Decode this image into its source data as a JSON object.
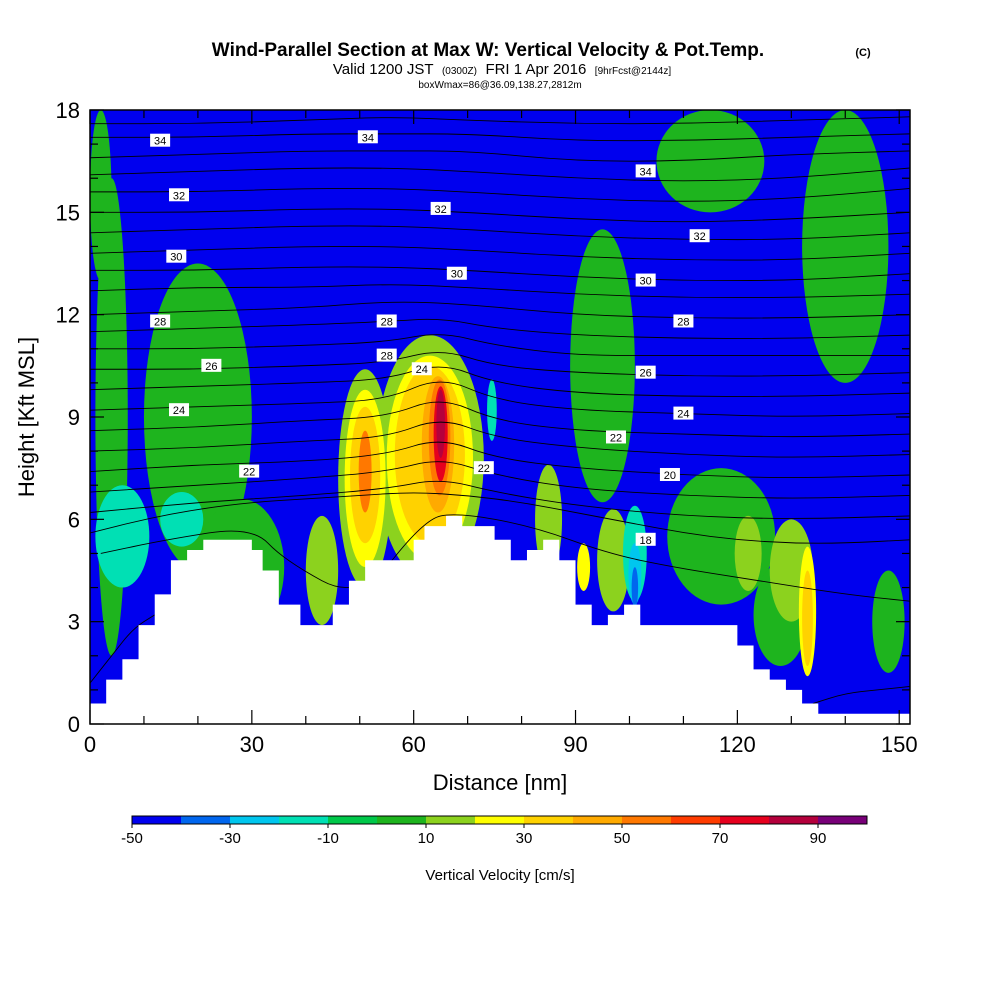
{
  "header": {
    "title": "Wind-Parallel Section at Max W: Vertical Velocity & Pot.Temp.",
    "copyright": "(C)",
    "valid_prefix": "Valid 1200 JST",
    "valid_utc": "(0300Z)",
    "valid_date": "FRI 1 Apr 2016",
    "forecast_info": "[9hrFcst@2144z]",
    "box_info": "boxWmax=86@36.09,138.27,2812m"
  },
  "chart_data": {
    "type": "heatmap",
    "xlabel": "Distance [nm]",
    "ylabel": "Height [Kft MSL]",
    "xlim": [
      0,
      152
    ],
    "ylim": [
      0,
      18
    ],
    "x_ticks": [
      0,
      30,
      60,
      90,
      120,
      150
    ],
    "y_ticks": [
      0,
      3,
      6,
      9,
      12,
      15,
      18
    ],
    "background_w_class": 0,
    "colorbar": {
      "label": "Vertical Velocity [cm/s]",
      "boundaries": [
        -50,
        -40,
        -30,
        -20,
        -10,
        0,
        10,
        20,
        30,
        40,
        50,
        60,
        70,
        80,
        90,
        100
      ],
      "tick_labels": [
        "-50",
        "-30",
        "-10",
        "10",
        "30",
        "50",
        "70",
        "90"
      ],
      "tick_values": [
        -50,
        -30,
        -10,
        10,
        30,
        50,
        70,
        90
      ],
      "colors": [
        "#0000ee",
        "#0066ee",
        "#00c6ee",
        "#00e0b4",
        "#00c84a",
        "#1eb41e",
        "#8cd21e",
        "#ffff00",
        "#ffd200",
        "#ffaa00",
        "#ff7800",
        "#ff3c00",
        "#e6001e",
        "#b4003c",
        "#780078"
      ]
    },
    "velocity_regions": [
      {
        "x": 4,
        "y": 9,
        "rx": 3,
        "ry": 7,
        "w_class": 5
      },
      {
        "x": 20,
        "y": 9,
        "rx": 10,
        "ry": 4.5,
        "w_class": 5
      },
      {
        "x": 28,
        "y": 4.6,
        "rx": 8,
        "ry": 2,
        "w_class": 5
      },
      {
        "x": 6,
        "y": 5.5,
        "rx": 5,
        "ry": 1.5,
        "w_class": 3
      },
      {
        "x": 17,
        "y": 6,
        "rx": 4,
        "ry": 0.8,
        "w_class": 3
      },
      {
        "x": 2,
        "y": 15.5,
        "rx": 2,
        "ry": 2.5,
        "w_class": 5
      },
      {
        "x": 115,
        "y": 16.5,
        "rx": 10,
        "ry": 1.5,
        "w_class": 5
      },
      {
        "x": 140,
        "y": 14,
        "rx": 8,
        "ry": 4,
        "w_class": 5
      },
      {
        "x": 95,
        "y": 10.5,
        "rx": 6,
        "ry": 4,
        "w_class": 5
      },
      {
        "x": 117,
        "y": 5.5,
        "rx": 10,
        "ry": 2,
        "w_class": 5
      },
      {
        "x": 128,
        "y": 3.2,
        "rx": 5,
        "ry": 1.5,
        "w_class": 5
      },
      {
        "x": 148,
        "y": 3,
        "rx": 3,
        "ry": 1.5,
        "w_class": 5
      },
      {
        "x": 43,
        "y": 4.5,
        "rx": 3,
        "ry": 1.6,
        "w_class": 6
      },
      {
        "x": 85,
        "y": 6,
        "rx": 2.5,
        "ry": 1.6,
        "w_class": 6
      },
      {
        "x": 97,
        "y": 4.8,
        "rx": 3,
        "ry": 1.5,
        "w_class": 6
      },
      {
        "x": 122,
        "y": 5,
        "rx": 2.5,
        "ry": 1.1,
        "w_class": 6
      },
      {
        "x": 130,
        "y": 4.5,
        "rx": 4,
        "ry": 1.5,
        "w_class": 6
      },
      {
        "x": 51,
        "y": 7.2,
        "rx": 5,
        "ry": 3.2,
        "w_class": 6
      },
      {
        "x": 63,
        "y": 7.8,
        "rx": 10,
        "ry": 3.6,
        "w_class": 6
      },
      {
        "x": 51,
        "y": 7.2,
        "rx": 3.8,
        "ry": 2.6,
        "w_class": 7
      },
      {
        "x": 63,
        "y": 7.8,
        "rx": 8,
        "ry": 3.0,
        "w_class": 7
      },
      {
        "x": 51,
        "y": 7.3,
        "rx": 2.8,
        "ry": 2.0,
        "w_class": 8
      },
      {
        "x": 63,
        "y": 7.9,
        "rx": 6.5,
        "ry": 2.6,
        "w_class": 8
      },
      {
        "x": 51,
        "y": 7.4,
        "rx": 1.2,
        "ry": 1.2,
        "w_class": 10
      },
      {
        "x": 64.5,
        "y": 8.2,
        "rx": 3.0,
        "ry": 2.0,
        "w_class": 9
      },
      {
        "x": 64.8,
        "y": 8.4,
        "rx": 2.0,
        "ry": 1.7,
        "w_class": 10
      },
      {
        "x": 65,
        "y": 8.5,
        "rx": 1.3,
        "ry": 1.4,
        "w_class": 12
      },
      {
        "x": 65,
        "y": 8.8,
        "rx": 0.8,
        "ry": 1.0,
        "w_class": 13
      },
      {
        "x": 133,
        "y": 3.3,
        "rx": 1.6,
        "ry": 1.9,
        "w_class": 7
      },
      {
        "x": 133,
        "y": 3.1,
        "rx": 1.0,
        "ry": 1.4,
        "w_class": 8
      },
      {
        "x": 74.5,
        "y": 9.2,
        "rx": 0.9,
        "ry": 0.9,
        "w_class": 3
      },
      {
        "x": 101,
        "y": 5.0,
        "rx": 2.2,
        "ry": 1.4,
        "w_class": 3
      },
      {
        "x": 101,
        "y": 4.4,
        "rx": 1.2,
        "ry": 0.9,
        "w_class": 2
      },
      {
        "x": 101,
        "y": 4.0,
        "rx": 0.6,
        "ry": 0.6,
        "w_class": 1
      },
      {
        "x": 91.5,
        "y": 4.6,
        "rx": 1.2,
        "ry": 0.7,
        "w_class": 7
      }
    ],
    "terrain": {
      "name": "terrain",
      "x": [
        0,
        3,
        3,
        6,
        6,
        9,
        9,
        12,
        12,
        15,
        15,
        18,
        18,
        21,
        21,
        24,
        24,
        30,
        30,
        32,
        32,
        35,
        35,
        39,
        39,
        45,
        45,
        48,
        48,
        51,
        51,
        54,
        54,
        60,
        60,
        62,
        62,
        66,
        66,
        69,
        69,
        75,
        75,
        78,
        78,
        81,
        81,
        84,
        84,
        87,
        87,
        90,
        90,
        93,
        93,
        96,
        96,
        99,
        99,
        102,
        102,
        108,
        108,
        120,
        120,
        123,
        123,
        126,
        126,
        129,
        129,
        132,
        132,
        135,
        135,
        138,
        138,
        141,
        141,
        152
      ],
      "height": [
        0.6,
        0.6,
        1.3,
        1.3,
        1.9,
        1.9,
        2.9,
        2.9,
        3.8,
        3.8,
        4.8,
        4.8,
        5.1,
        5.1,
        5.4,
        5.4,
        5.4,
        5.4,
        5.1,
        5.1,
        4.5,
        4.5,
        3.5,
        3.5,
        2.9,
        2.9,
        3.5,
        3.5,
        4.2,
        4.2,
        4.8,
        4.8,
        4.8,
        4.8,
        5.4,
        5.4,
        5.8,
        5.8,
        6.1,
        6.1,
        5.8,
        5.8,
        5.4,
        5.4,
        4.8,
        4.8,
        5.1,
        5.1,
        5.4,
        5.4,
        4.8,
        4.8,
        3.5,
        3.5,
        2.9,
        2.9,
        3.2,
        3.2,
        3.5,
        3.5,
        2.9,
        2.9,
        2.9,
        2.9,
        2.3,
        2.3,
        1.6,
        1.6,
        1.3,
        1.3,
        1.0,
        1.0,
        0.6,
        0.6,
        0.3,
        0.3,
        0.3,
        0.3,
        0.3,
        0.3
      ]
    },
    "theta_isentropes": [
      {
        "name": "isentrope",
        "x": [
          0,
          20,
          40,
          56,
          70,
          90,
          110,
          130,
          152
        ],
        "height": [
          17.6,
          17.6,
          17.7,
          17.8,
          17.7,
          17.6,
          17.6,
          17.7,
          17.8
        ]
      },
      {
        "name": "isentrope",
        "x": [
          0,
          20,
          40,
          56,
          70,
          90,
          110,
          130,
          152
        ],
        "height": [
          17.2,
          17.2,
          17.3,
          17.3,
          17.3,
          17.1,
          17.1,
          17.2,
          17.3
        ]
      },
      {
        "name": "isentrope",
        "x": [
          0,
          20,
          40,
          56,
          70,
          90,
          110,
          130,
          152
        ],
        "height": [
          16.6,
          16.7,
          16.8,
          16.8,
          16.8,
          16.5,
          16.5,
          16.7,
          16.8
        ]
      },
      {
        "name": "isentrope",
        "x": [
          0,
          20,
          40,
          56,
          70,
          90,
          110,
          130,
          152
        ],
        "height": [
          16.1,
          16.2,
          16.3,
          16.3,
          16.2,
          16.0,
          15.9,
          16.0,
          16.3
        ]
      },
      {
        "name": "isentrope",
        "x": [
          0,
          20,
          40,
          56,
          70,
          90,
          110,
          130,
          152
        ],
        "height": [
          15.6,
          15.6,
          15.7,
          15.7,
          15.6,
          15.4,
          15.3,
          15.4,
          15.7
        ]
      },
      {
        "name": "isentrope",
        "x": [
          0,
          20,
          40,
          56,
          70,
          90,
          110,
          130,
          152
        ],
        "height": [
          15.0,
          15.0,
          15.1,
          15.1,
          15.0,
          14.8,
          14.7,
          14.8,
          15.0
        ]
      },
      {
        "name": "isentrope",
        "x": [
          0,
          20,
          40,
          56,
          70,
          90,
          110,
          130,
          152
        ],
        "height": [
          14.4,
          14.5,
          14.6,
          14.6,
          14.5,
          14.3,
          14.2,
          14.2,
          14.4
        ]
      },
      {
        "name": "isentrope",
        "x": [
          0,
          20,
          40,
          56,
          70,
          90,
          110,
          130,
          152
        ],
        "height": [
          13.8,
          13.9,
          14.0,
          14.0,
          13.9,
          13.7,
          13.6,
          13.6,
          13.8
        ]
      },
      {
        "name": "isentrope",
        "x": [
          0,
          20,
          40,
          56,
          70,
          90,
          110,
          130,
          152
        ],
        "height": [
          13.3,
          13.3,
          13.4,
          13.4,
          13.3,
          13.1,
          13.0,
          13.0,
          13.2
        ]
      },
      {
        "name": "isentrope",
        "x": [
          0,
          20,
          40,
          56,
          70,
          90,
          110,
          130,
          152
        ],
        "height": [
          12.7,
          12.8,
          12.8,
          12.9,
          12.8,
          12.6,
          12.5,
          12.5,
          12.6
        ]
      },
      {
        "name": "isentrope",
        "x": [
          0,
          20,
          40,
          56,
          70,
          90,
          110,
          130,
          152
        ],
        "height": [
          12.0,
          12.1,
          12.2,
          12.4,
          12.3,
          12.0,
          11.9,
          11.9,
          12.0
        ]
      },
      {
        "name": "isentrope",
        "x": [
          0,
          20,
          40,
          55,
          65,
          75,
          90,
          110,
          130,
          152
        ],
        "height": [
          11.5,
          11.6,
          11.7,
          11.8,
          11.9,
          11.6,
          11.4,
          11.3,
          11.3,
          11.4
        ]
      },
      {
        "name": "isentrope",
        "x": [
          0,
          20,
          40,
          55,
          65,
          75,
          90,
          110,
          130,
          152
        ],
        "height": [
          11.0,
          11.0,
          11.1,
          11.2,
          11.5,
          11.1,
          10.8,
          10.8,
          10.8,
          10.8
        ]
      },
      {
        "name": "isentrope",
        "x": [
          0,
          20,
          40,
          55,
          65,
          75,
          90,
          110,
          130,
          152
        ],
        "height": [
          10.4,
          10.4,
          10.5,
          10.6,
          11.0,
          10.5,
          10.3,
          10.2,
          10.2,
          10.3
        ]
      },
      {
        "name": "isentrope",
        "x": [
          0,
          20,
          40,
          55,
          65,
          75,
          90,
          110,
          130,
          152
        ],
        "height": [
          9.8,
          9.9,
          10.0,
          10.1,
          10.6,
          10.0,
          9.7,
          9.6,
          9.6,
          9.7
        ]
      },
      {
        "name": "isentrope",
        "x": [
          0,
          20,
          40,
          55,
          65,
          75,
          90,
          110,
          130,
          152
        ],
        "height": [
          9.2,
          9.3,
          9.4,
          9.5,
          10.2,
          9.5,
          9.2,
          9.1,
          9.0,
          9.1
        ]
      },
      {
        "name": "isentrope",
        "x": [
          0,
          20,
          40,
          55,
          65,
          75,
          90,
          110,
          130,
          152
        ],
        "height": [
          8.6,
          8.7,
          8.9,
          9.0,
          9.6,
          8.9,
          8.6,
          8.5,
          8.4,
          8.5
        ]
      },
      {
        "name": "isentrope",
        "x": [
          0,
          20,
          40,
          55,
          65,
          75,
          90,
          110,
          130,
          152
        ],
        "height": [
          8.0,
          8.1,
          8.3,
          8.4,
          9.0,
          8.4,
          8.1,
          7.9,
          7.8,
          7.9
        ]
      },
      {
        "name": "isentrope",
        "x": [
          0,
          20,
          40,
          55,
          65,
          75,
          90,
          110,
          130,
          152
        ],
        "height": [
          7.4,
          7.6,
          7.7,
          7.9,
          8.4,
          7.8,
          7.5,
          7.3,
          7.2,
          7.3
        ]
      },
      {
        "name": "isentrope",
        "x": [
          0,
          20,
          40,
          55,
          65,
          75,
          90,
          110,
          130,
          152
        ],
        "height": [
          6.8,
          7.0,
          7.2,
          7.4,
          7.8,
          7.3,
          6.9,
          6.7,
          6.6,
          6.7
        ]
      },
      {
        "name": "isentrope",
        "x": [
          0,
          20,
          40,
          55,
          65,
          75,
          90,
          110,
          130,
          152
        ],
        "height": [
          6.2,
          6.5,
          6.7,
          6.9,
          7.2,
          6.8,
          6.4,
          6.1,
          6.0,
          6.1
        ]
      },
      {
        "name": "isentrope",
        "x": [
          0,
          10,
          20,
          30,
          40,
          50,
          60,
          70,
          80,
          90,
          100,
          110,
          120,
          130,
          140,
          152
        ],
        "height": [
          5.6,
          6.0,
          6.3,
          6.5,
          6.6,
          6.7,
          6.8,
          6.7,
          6.5,
          6.2,
          5.9,
          5.6,
          5.4,
          5.3,
          5.3,
          5.4
        ]
      },
      {
        "name": "isentrope",
        "x": [
          2,
          14,
          30,
          36,
          50,
          62,
          68,
          82,
          96,
          108,
          124,
          140,
          152
        ],
        "height": [
          5.0,
          5.4,
          5.8,
          4.8,
          3.6,
          6.0,
          6.2,
          5.8,
          5.0,
          4.6,
          4.2,
          3.8,
          3.6
        ]
      },
      {
        "name": "isentrope",
        "x": [
          134,
          140,
          146,
          152
        ],
        "height": [
          0.6,
          0.9,
          1.0,
          1.1
        ]
      },
      {
        "name": "isentrope",
        "x": [
          0,
          4,
          8,
          12
        ],
        "height": [
          1.2,
          2.0,
          2.8,
          3.2
        ]
      }
    ],
    "theta_labels": [
      {
        "text": "34",
        "x": 13,
        "y": 17.1
      },
      {
        "text": "34",
        "x": 51.5,
        "y": 17.2
      },
      {
        "text": "34",
        "x": 103,
        "y": 16.2
      },
      {
        "text": "32",
        "x": 16.5,
        "y": 15.5
      },
      {
        "text": "32",
        "x": 65,
        "y": 15.1
      },
      {
        "text": "32",
        "x": 113,
        "y": 14.3
      },
      {
        "text": "30",
        "x": 16,
        "y": 13.7
      },
      {
        "text": "30",
        "x": 68,
        "y": 13.2
      },
      {
        "text": "30",
        "x": 103,
        "y": 13.0
      },
      {
        "text": "28",
        "x": 13,
        "y": 11.8
      },
      {
        "text": "28",
        "x": 55,
        "y": 11.8
      },
      {
        "text": "28",
        "x": 110,
        "y": 11.8
      },
      {
        "text": "28",
        "x": 55,
        "y": 10.8
      },
      {
        "text": "26",
        "x": 22.5,
        "y": 10.5
      },
      {
        "text": "26",
        "x": 103,
        "y": 10.3
      },
      {
        "text": "24",
        "x": 16.5,
        "y": 9.2
      },
      {
        "text": "24",
        "x": 61.5,
        "y": 10.4
      },
      {
        "text": "24",
        "x": 110,
        "y": 9.1
      },
      {
        "text": "22",
        "x": 29.5,
        "y": 7.4
      },
      {
        "text": "22",
        "x": 73,
        "y": 7.5
      },
      {
        "text": "22",
        "x": 97.5,
        "y": 8.4
      },
      {
        "text": "20",
        "x": 107.5,
        "y": 7.3
      },
      {
        "text": "18",
        "x": 103,
        "y": 5.4
      }
    ]
  }
}
